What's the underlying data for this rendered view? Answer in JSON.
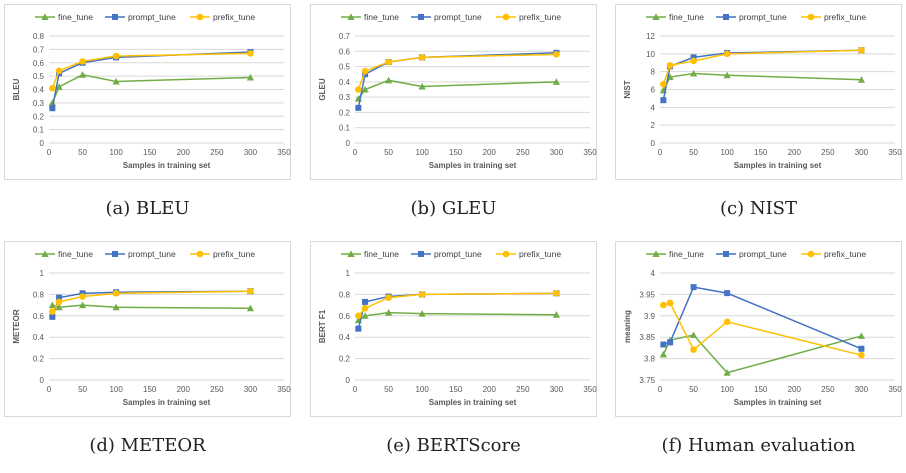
{
  "figure": {
    "colors": {
      "fine_tune": "#70ad47",
      "prompt_tune": "#4472c4",
      "prefix_tune": "#ffc000"
    }
  },
  "chart_data": [
    {
      "type": "line",
      "caption": "(a) BLEU",
      "xlabel": "Samples in training set",
      "ylabel": "BLEU",
      "xlim": [
        0,
        350
      ],
      "xticks": [
        0,
        50,
        100,
        150,
        200,
        250,
        300,
        350
      ],
      "ylim": [
        0,
        0.8
      ],
      "yticks": [
        0,
        0.1,
        0.2,
        0.3,
        0.4,
        0.5,
        0.6,
        0.7,
        0.8
      ],
      "grid": true,
      "legend": "top",
      "series": [
        {
          "name": "fine_tune",
          "x": [
            5,
            15,
            50,
            100,
            300
          ],
          "y": [
            0.3,
            0.42,
            0.51,
            0.46,
            0.49
          ]
        },
        {
          "name": "prompt_tune",
          "x": [
            5,
            15,
            50,
            100,
            300
          ],
          "y": [
            0.26,
            0.52,
            0.6,
            0.64,
            0.68
          ]
        },
        {
          "name": "prefix_tune",
          "x": [
            5,
            15,
            50,
            100,
            300
          ],
          "y": [
            0.41,
            0.54,
            0.61,
            0.65,
            0.67
          ]
        }
      ]
    },
    {
      "type": "line",
      "caption": "(b) GLEU",
      "xlabel": "Samples in training set",
      "ylabel": "GLEU",
      "xlim": [
        0,
        350
      ],
      "xticks": [
        0,
        50,
        100,
        150,
        200,
        250,
        300,
        350
      ],
      "ylim": [
        0,
        0.7
      ],
      "yticks": [
        0,
        0.1,
        0.2,
        0.3,
        0.4,
        0.5,
        0.6,
        0.7
      ],
      "grid": true,
      "legend": "top",
      "series": [
        {
          "name": "fine_tune",
          "x": [
            5,
            15,
            50,
            100,
            300
          ],
          "y": [
            0.29,
            0.35,
            0.41,
            0.37,
            0.4
          ]
        },
        {
          "name": "prompt_tune",
          "x": [
            5,
            15,
            50,
            100,
            300
          ],
          "y": [
            0.23,
            0.45,
            0.53,
            0.56,
            0.59
          ]
        },
        {
          "name": "prefix_tune",
          "x": [
            5,
            15,
            50,
            100,
            300
          ],
          "y": [
            0.35,
            0.47,
            0.53,
            0.56,
            0.58
          ]
        }
      ]
    },
    {
      "type": "line",
      "caption": "(c) NIST",
      "xlabel": "Samples in training set",
      "ylabel": "NIST",
      "xlim": [
        0,
        350
      ],
      "xticks": [
        0,
        50,
        100,
        150,
        200,
        250,
        300,
        350
      ],
      "ylim": [
        0,
        12
      ],
      "yticks": [
        0,
        2,
        4,
        6,
        8,
        10,
        12
      ],
      "grid": true,
      "legend": "top",
      "series": [
        {
          "name": "fine_tune",
          "x": [
            5,
            15,
            50,
            100,
            300
          ],
          "y": [
            5.9,
            7.4,
            7.8,
            7.6,
            7.1
          ]
        },
        {
          "name": "prompt_tune",
          "x": [
            5,
            15,
            50,
            100,
            300
          ],
          "y": [
            4.8,
            8.6,
            9.6,
            10.1,
            10.4
          ]
        },
        {
          "name": "prefix_tune",
          "x": [
            5,
            15,
            50,
            100,
            300
          ],
          "y": [
            6.6,
            8.7,
            9.2,
            10.0,
            10.4
          ]
        }
      ]
    },
    {
      "type": "line",
      "caption": "(d) METEOR",
      "xlabel": "Samples in training set",
      "ylabel": "METEOR",
      "xlim": [
        0,
        350
      ],
      "xticks": [
        0,
        50,
        100,
        150,
        200,
        250,
        300,
        350
      ],
      "ylim": [
        0,
        1
      ],
      "yticks": [
        0,
        0.2,
        0.4,
        0.6,
        0.8,
        1
      ],
      "grid": true,
      "legend": "top",
      "series": [
        {
          "name": "fine_tune",
          "x": [
            5,
            15,
            50,
            100,
            300
          ],
          "y": [
            0.7,
            0.68,
            0.7,
            0.68,
            0.67
          ]
        },
        {
          "name": "prompt_tune",
          "x": [
            5,
            15,
            50,
            100,
            300
          ],
          "y": [
            0.59,
            0.77,
            0.81,
            0.82,
            0.83
          ]
        },
        {
          "name": "prefix_tune",
          "x": [
            5,
            15,
            50,
            100,
            300
          ],
          "y": [
            0.64,
            0.73,
            0.78,
            0.81,
            0.83
          ]
        }
      ]
    },
    {
      "type": "line",
      "caption": "(e) BERTScore",
      "xlabel": "Samples in training set",
      "ylabel": "BERT F1",
      "xlim": [
        0,
        350
      ],
      "xticks": [
        0,
        50,
        100,
        150,
        200,
        250,
        300,
        350
      ],
      "ylim": [
        0,
        1
      ],
      "yticks": [
        0,
        0.2,
        0.4,
        0.6,
        0.8,
        1
      ],
      "grid": true,
      "legend": "top",
      "series": [
        {
          "name": "fine_tune",
          "x": [
            5,
            15,
            50,
            100,
            300
          ],
          "y": [
            0.56,
            0.6,
            0.63,
            0.62,
            0.61
          ]
        },
        {
          "name": "prompt_tune",
          "x": [
            5,
            15,
            50,
            100,
            300
          ],
          "y": [
            0.48,
            0.73,
            0.78,
            0.8,
            0.81
          ]
        },
        {
          "name": "prefix_tune",
          "x": [
            5,
            15,
            50,
            100,
            300
          ],
          "y": [
            0.6,
            0.67,
            0.77,
            0.8,
            0.81
          ]
        }
      ]
    },
    {
      "type": "line",
      "caption": "(f) Human evaluation",
      "xlabel": "Samples in training set",
      "ylabel": "meaning",
      "xlim": [
        0,
        350
      ],
      "xticks": [
        0,
        50,
        100,
        150,
        200,
        250,
        300,
        350
      ],
      "ylim": [
        3.75,
        4
      ],
      "yticks": [
        3.75,
        3.8,
        3.85,
        3.9,
        3.95,
        4
      ],
      "grid": true,
      "legend": "top",
      "series": [
        {
          "name": "fine_tune",
          "x": [
            5,
            15,
            50,
            100,
            300
          ],
          "y": [
            3.81,
            3.843,
            3.855,
            3.767,
            3.853
          ]
        },
        {
          "name": "prompt_tune",
          "x": [
            5,
            15,
            50,
            100,
            300
          ],
          "y": [
            3.833,
            3.838,
            3.967,
            3.953,
            3.823
          ]
        },
        {
          "name": "prefix_tune",
          "x": [
            5,
            15,
            50,
            100,
            300
          ],
          "y": [
            3.925,
            3.93,
            3.821,
            3.886,
            3.808
          ]
        }
      ]
    }
  ]
}
